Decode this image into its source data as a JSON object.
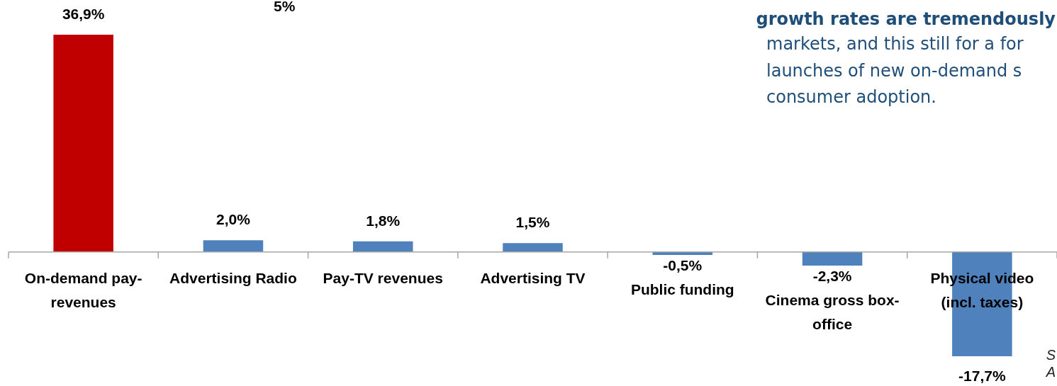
{
  "chart_data": {
    "type": "bar",
    "categories": [
      "On-demand pay-revenues",
      "Advertising Radio",
      "Pay-TV revenues",
      "Advertising TV",
      "Public funding",
      "Cinema gross box-office",
      "Physical video (incl. taxes)"
    ],
    "values": [
      36.9,
      2.0,
      1.8,
      1.5,
      -0.5,
      -2.3,
      -17.7
    ],
    "colors": [
      "#c00000",
      "#4f81bd",
      "#4f81bd",
      "#4f81bd",
      "#4f81bd",
      "#4f81bd",
      "#4f81bd"
    ],
    "value_labels": [
      "36,9%",
      "2,0%",
      "1,8%",
      "1,5%",
      "-0,5%",
      "-2,3%",
      "-17,7%"
    ],
    "annotations": [
      "5%",
      "growth rates are tremendously",
      "markets, and this still for a for",
      "launches of new on-demand s",
      "consumer adoption.",
      "S",
      "A"
    ],
    "legend": false
  }
}
